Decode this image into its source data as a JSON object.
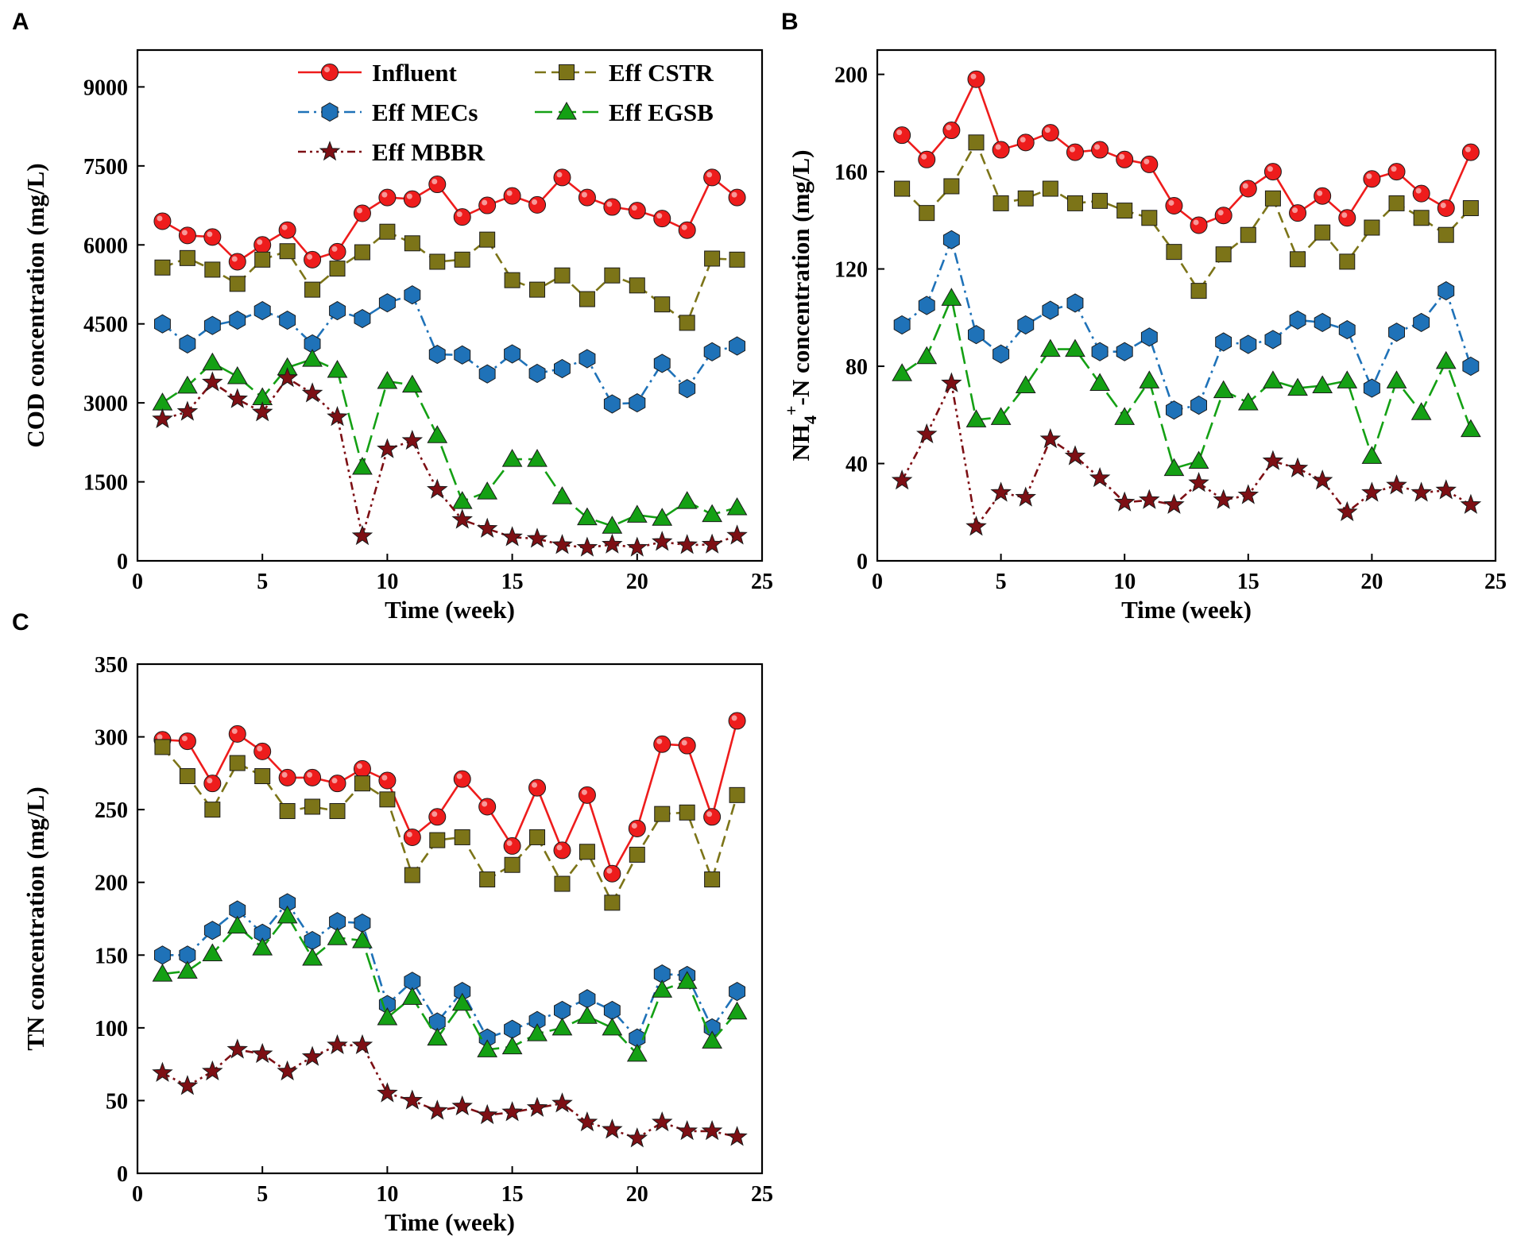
{
  "figure": {
    "panel_letters": [
      "A",
      "B",
      "C"
    ]
  },
  "colors": {
    "influent": "#ee1c1c",
    "cstr": "#7c7418",
    "mecs": "#1f72b8",
    "egsb": "#14a014",
    "mbbr": "#7d0f14"
  },
  "legend": {
    "influent": "Influent",
    "cstr": "Eff CSTR",
    "mecs": "Eff MECs",
    "egsb": "Eff EGSB",
    "mbbr": "Eff MBBR"
  },
  "chart_data": [
    {
      "panel": "A",
      "type": "line",
      "title": "",
      "xlabel": "Time (week)",
      "ylabel": "COD concentration (mg/L)",
      "xlim": [
        0,
        25
      ],
      "ylim": [
        0,
        9700
      ],
      "xticks": [
        0,
        5,
        10,
        15,
        20,
        25
      ],
      "yticks": [
        0,
        1500,
        3000,
        4500,
        6000,
        7500,
        9000
      ],
      "legend_position": "top",
      "x": [
        1,
        2,
        3,
        4,
        5,
        6,
        7,
        8,
        9,
        10,
        11,
        12,
        13,
        14,
        15,
        16,
        17,
        18,
        19,
        20,
        21,
        22,
        23,
        24
      ],
      "series": [
        {
          "key": "influent",
          "name": "Influent",
          "marker": "circle",
          "dash": "solid",
          "values": [
            6450,
            6180,
            6150,
            5680,
            6000,
            6280,
            5720,
            5870,
            6600,
            6900,
            6870,
            7150,
            6530,
            6750,
            6930,
            6760,
            7280,
            6900,
            6720,
            6650,
            6500,
            6280,
            7280,
            6900
          ]
        },
        {
          "key": "cstr",
          "name": "Eff CSTR",
          "marker": "square",
          "dash": "dash",
          "values": [
            5570,
            5750,
            5530,
            5260,
            5720,
            5880,
            5150,
            5550,
            5860,
            6250,
            6030,
            5680,
            5720,
            6100,
            5330,
            5150,
            5420,
            4970,
            5420,
            5230,
            4870,
            4520,
            5740,
            5720
          ]
        },
        {
          "key": "mecs",
          "name": "Eff MECs",
          "marker": "hexagon",
          "dash": "dashdot",
          "values": [
            4500,
            4120,
            4470,
            4570,
            4750,
            4570,
            4120,
            4750,
            4600,
            4900,
            5050,
            3920,
            3910,
            3550,
            3930,
            3560,
            3650,
            3840,
            2980,
            3000,
            3750,
            3270,
            3970,
            4080
          ]
        },
        {
          "key": "egsb",
          "name": "Eff EGSB",
          "marker": "triangle",
          "dash": "longdash",
          "values": [
            3000,
            3320,
            3760,
            3500,
            3100,
            3670,
            3830,
            3620,
            1780,
            3410,
            3340,
            2380,
            1130,
            1310,
            1930,
            1930,
            1220,
            820,
            660,
            870,
            810,
            1130,
            880,
            1010
          ]
        },
        {
          "key": "mbbr",
          "name": "Eff MBBR",
          "marker": "star",
          "dash": "dashdotdot",
          "values": [
            2690,
            2830,
            3390,
            3070,
            2820,
            3470,
            3180,
            2730,
            470,
            2120,
            2280,
            1350,
            780,
            610,
            450,
            420,
            300,
            250,
            310,
            250,
            360,
            300,
            310,
            480
          ]
        }
      ]
    },
    {
      "panel": "B",
      "type": "line",
      "title": "",
      "xlabel": "Time (week)",
      "ylabel": "NH4+-N concentration (mg/L)",
      "ylabel_parts": {
        "main": "NH",
        "sub": "4",
        "sup": "+",
        "rest": "-N concentration (mg/L)"
      },
      "xlim": [
        0,
        25
      ],
      "ylim": [
        0,
        210
      ],
      "xticks": [
        0,
        5,
        10,
        15,
        20,
        25
      ],
      "yticks": [
        0,
        40,
        80,
        120,
        160,
        200
      ],
      "x": [
        1,
        2,
        3,
        4,
        5,
        6,
        7,
        8,
        9,
        10,
        11,
        12,
        13,
        14,
        15,
        16,
        17,
        18,
        19,
        20,
        21,
        22,
        23,
        24
      ],
      "series": [
        {
          "key": "influent",
          "name": "Influent",
          "marker": "circle",
          "dash": "solid",
          "values": [
            175,
            165,
            177,
            198,
            169,
            172,
            176,
            168,
            169,
            165,
            163,
            146,
            138,
            142,
            153,
            160,
            143,
            150,
            141,
            157,
            160,
            151,
            145,
            168
          ]
        },
        {
          "key": "cstr",
          "name": "Eff CSTR",
          "marker": "square",
          "dash": "dash",
          "values": [
            153,
            143,
            154,
            172,
            147,
            149,
            153,
            147,
            148,
            144,
            141,
            127,
            111,
            126,
            134,
            149,
            124,
            135,
            123,
            137,
            147,
            141,
            134,
            145
          ]
        },
        {
          "key": "mecs",
          "name": "Eff MECs",
          "marker": "hexagon",
          "dash": "dashdot",
          "values": [
            97,
            105,
            132,
            93,
            85,
            97,
            103,
            106,
            86,
            86,
            92,
            62,
            64,
            90,
            89,
            91,
            99,
            98,
            95,
            71,
            94,
            98,
            111,
            80
          ]
        },
        {
          "key": "egsb",
          "name": "Eff EGSB",
          "marker": "triangle",
          "dash": "longdash",
          "values": [
            77,
            84,
            108,
            58,
            59,
            72,
            87,
            87,
            73,
            59,
            74,
            38,
            41,
            70,
            65,
            74,
            71,
            72,
            74,
            43,
            74,
            61,
            82,
            54
          ]
        },
        {
          "key": "mbbr",
          "name": "Eff MBBR",
          "marker": "star",
          "dash": "dashdotdot",
          "values": [
            33,
            52,
            73,
            14,
            28,
            26,
            50,
            43,
            34,
            24,
            25,
            23,
            32,
            25,
            27,
            41,
            38,
            33,
            20,
            28,
            31,
            28,
            29,
            23
          ]
        }
      ]
    },
    {
      "panel": "C",
      "type": "line",
      "title": "",
      "xlabel": "Time (week)",
      "ylabel": "TN concentration (mg/L)",
      "xlim": [
        0,
        25
      ],
      "ylim": [
        0,
        350
      ],
      "xticks": [
        0,
        5,
        10,
        15,
        20,
        25
      ],
      "yticks": [
        0,
        50,
        100,
        150,
        200,
        250,
        300,
        350
      ],
      "x": [
        1,
        2,
        3,
        4,
        5,
        6,
        7,
        8,
        9,
        10,
        11,
        12,
        13,
        14,
        15,
        16,
        17,
        18,
        19,
        20,
        21,
        22,
        23,
        24
      ],
      "series": [
        {
          "key": "influent",
          "name": "Influent",
          "marker": "circle",
          "dash": "solid",
          "values": [
            298,
            297,
            268,
            302,
            290,
            272,
            272,
            268,
            278,
            270,
            231,
            245,
            271,
            252,
            225,
            265,
            222,
            260,
            206,
            237,
            295,
            294,
            245,
            311
          ]
        },
        {
          "key": "cstr",
          "name": "Eff CSTR",
          "marker": "square",
          "dash": "dash",
          "values": [
            293,
            273,
            250,
            282,
            273,
            249,
            252,
            249,
            268,
            257,
            205,
            229,
            231,
            202,
            212,
            231,
            199,
            221,
            186,
            219,
            247,
            248,
            202,
            260
          ]
        },
        {
          "key": "mecs",
          "name": "Eff MECs",
          "marker": "hexagon",
          "dash": "dashdot",
          "values": [
            150,
            150,
            167,
            181,
            165,
            186,
            160,
            173,
            172,
            116,
            132,
            104,
            125,
            93,
            99,
            105,
            112,
            120,
            112,
            93,
            137,
            136,
            100,
            125
          ]
        },
        {
          "key": "egsb",
          "name": "Eff EGSB",
          "marker": "triangle",
          "dash": "longdash",
          "values": [
            137,
            139,
            151,
            170,
            155,
            177,
            148,
            162,
            160,
            107,
            121,
            93,
            117,
            85,
            87,
            96,
            100,
            108,
            100,
            82,
            126,
            132,
            91,
            111
          ]
        },
        {
          "key": "mbbr",
          "name": "Eff MBBR",
          "marker": "star",
          "dash": "dashdotdot",
          "values": [
            69,
            60,
            70,
            85,
            82,
            70,
            80,
            88,
            88,
            55,
            50,
            43,
            46,
            40,
            42,
            45,
            48,
            35,
            30,
            24,
            35,
            29,
            29,
            25
          ]
        }
      ]
    }
  ]
}
